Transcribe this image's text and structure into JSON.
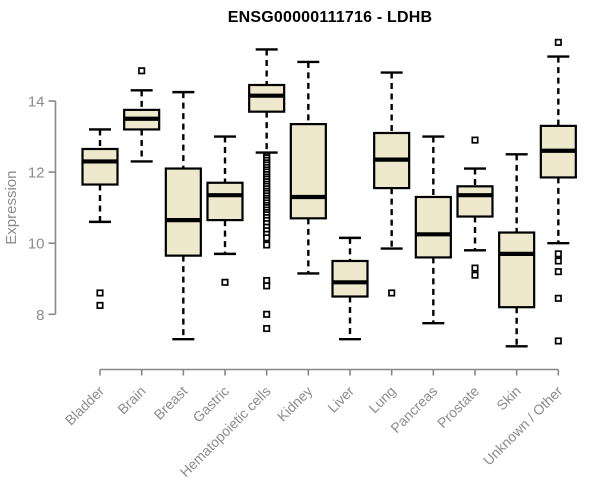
{
  "chart_data": {
    "type": "boxplot",
    "title": "ENSG00000111716 - LDHB",
    "xlabel": "",
    "ylabel": "Expression",
    "yticks": [
      8,
      10,
      12,
      14
    ],
    "ylim": [
      6.8,
      15.9
    ],
    "grid": false,
    "legend": "none",
    "x_label_rotation_deg": -45,
    "categories": [
      "Bladder",
      "Brain",
      "Breast",
      "Gastric",
      "Hematopoietic cells",
      "Kidney",
      "Liver",
      "Lung",
      "Pancreas",
      "Prostate",
      "Skin",
      "Unknown / Other"
    ],
    "series": [
      {
        "category": "Bladder",
        "whisker_low": 10.6,
        "q1": 11.65,
        "median": 12.3,
        "q3": 12.65,
        "whisker_high": 13.2,
        "outliers": [
          8.6,
          8.25
        ]
      },
      {
        "category": "Brain",
        "whisker_low": 12.3,
        "q1": 13.2,
        "median": 13.5,
        "q3": 13.75,
        "whisker_high": 14.3,
        "outliers": [
          14.85
        ]
      },
      {
        "category": "Breast",
        "whisker_low": 7.3,
        "q1": 9.65,
        "median": 10.65,
        "q3": 12.1,
        "whisker_high": 14.25,
        "outliers": []
      },
      {
        "category": "Gastric",
        "whisker_low": 9.7,
        "q1": 10.65,
        "median": 11.35,
        "q3": 11.7,
        "whisker_high": 13.0,
        "outliers": [
          8.9
        ]
      },
      {
        "category": "Hematopoietic cells",
        "whisker_low": 12.55,
        "q1": 13.7,
        "median": 14.15,
        "q3": 14.45,
        "whisker_high": 15.45,
        "outliers": [
          12.45,
          12.4,
          12.33,
          12.26,
          12.2,
          12.13,
          12.06,
          12.0,
          11.93,
          11.86,
          11.8,
          11.73,
          11.66,
          11.6,
          11.53,
          11.46,
          11.4,
          11.33,
          11.26,
          11.2,
          11.13,
          11.06,
          11.0,
          10.93,
          10.86,
          10.8,
          10.72,
          10.64,
          10.55,
          10.45,
          10.35,
          10.25,
          10.15,
          9.95,
          8.95,
          8.8,
          8.0,
          7.6
        ]
      },
      {
        "category": "Kidney",
        "whisker_low": 9.15,
        "q1": 10.7,
        "median": 11.3,
        "q3": 13.35,
        "whisker_high": 15.1,
        "outliers": []
      },
      {
        "category": "Liver",
        "whisker_low": 7.3,
        "q1": 8.5,
        "median": 8.9,
        "q3": 9.5,
        "whisker_high": 10.15,
        "outliers": []
      },
      {
        "category": "Lung",
        "whisker_low": 9.85,
        "q1": 11.55,
        "median": 12.35,
        "q3": 13.1,
        "whisker_high": 14.8,
        "outliers": [
          8.6
        ]
      },
      {
        "category": "Pancreas",
        "whisker_low": 7.75,
        "q1": 9.6,
        "median": 10.25,
        "q3": 11.3,
        "whisker_high": 13.0,
        "outliers": []
      },
      {
        "category": "Prostate",
        "whisker_low": 9.8,
        "q1": 10.75,
        "median": 11.35,
        "q3": 11.6,
        "whisker_high": 12.1,
        "outliers": [
          12.9,
          9.3,
          9.1
        ]
      },
      {
        "category": "Skin",
        "whisker_low": 7.1,
        "q1": 8.2,
        "median": 9.7,
        "q3": 10.3,
        "whisker_high": 12.5,
        "outliers": []
      },
      {
        "category": "Unknown / Other",
        "whisker_low": 10.0,
        "q1": 11.85,
        "median": 12.6,
        "q3": 13.3,
        "whisker_high": 15.25,
        "outliers": [
          15.65,
          9.7,
          9.5,
          9.2,
          8.45,
          7.25
        ]
      }
    ],
    "colors": {
      "box_fill": "#EEE8CD",
      "box_stroke": "#000000",
      "median": "#000000",
      "whisker": "#000000",
      "axis": "#878787",
      "tick_label": "#8C8C8C",
      "title": "#000000",
      "outlier_fill": "#FFFFFF",
      "outlier_stroke": "#000000"
    }
  }
}
